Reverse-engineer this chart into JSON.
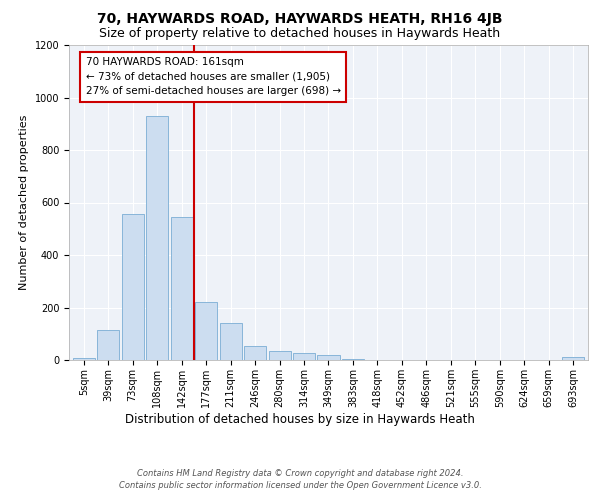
{
  "title": "70, HAYWARDS ROAD, HAYWARDS HEATH, RH16 4JB",
  "subtitle": "Size of property relative to detached houses in Haywards Heath",
  "xlabel": "Distribution of detached houses by size in Haywards Heath",
  "ylabel": "Number of detached properties",
  "categories": [
    "5sqm",
    "39sqm",
    "73sqm",
    "108sqm",
    "142sqm",
    "177sqm",
    "211sqm",
    "246sqm",
    "280sqm",
    "314sqm",
    "349sqm",
    "383sqm",
    "418sqm",
    "452sqm",
    "486sqm",
    "521sqm",
    "555sqm",
    "590sqm",
    "624sqm",
    "659sqm",
    "693sqm"
  ],
  "values": [
    8,
    115,
    555,
    930,
    545,
    222,
    140,
    55,
    33,
    28,
    20,
    5,
    0,
    0,
    0,
    0,
    0,
    0,
    0,
    0,
    10
  ],
  "bar_color": "#ccddf0",
  "bar_edge_color": "#7aadd4",
  "vline_x": 4.5,
  "vline_color": "#cc0000",
  "annotation_line1": "70 HAYWARDS ROAD: 161sqm",
  "annotation_line2": "← 73% of detached houses are smaller (1,905)",
  "annotation_line3": "27% of semi-detached houses are larger (698) →",
  "annotation_box_color": "#ffffff",
  "annotation_box_edge": "#cc0000",
  "ylim": [
    0,
    1200
  ],
  "yticks": [
    0,
    200,
    400,
    600,
    800,
    1000,
    1200
  ],
  "footer_line1": "Contains HM Land Registry data © Crown copyright and database right 2024.",
  "footer_line2": "Contains public sector information licensed under the Open Government Licence v3.0.",
  "plot_bg_color": "#eef2f8",
  "title_fontsize": 10,
  "subtitle_fontsize": 9,
  "ylabel_fontsize": 8,
  "xlabel_fontsize": 8.5,
  "tick_fontsize": 7,
  "annotation_fontsize": 7.5,
  "footer_fontsize": 6
}
